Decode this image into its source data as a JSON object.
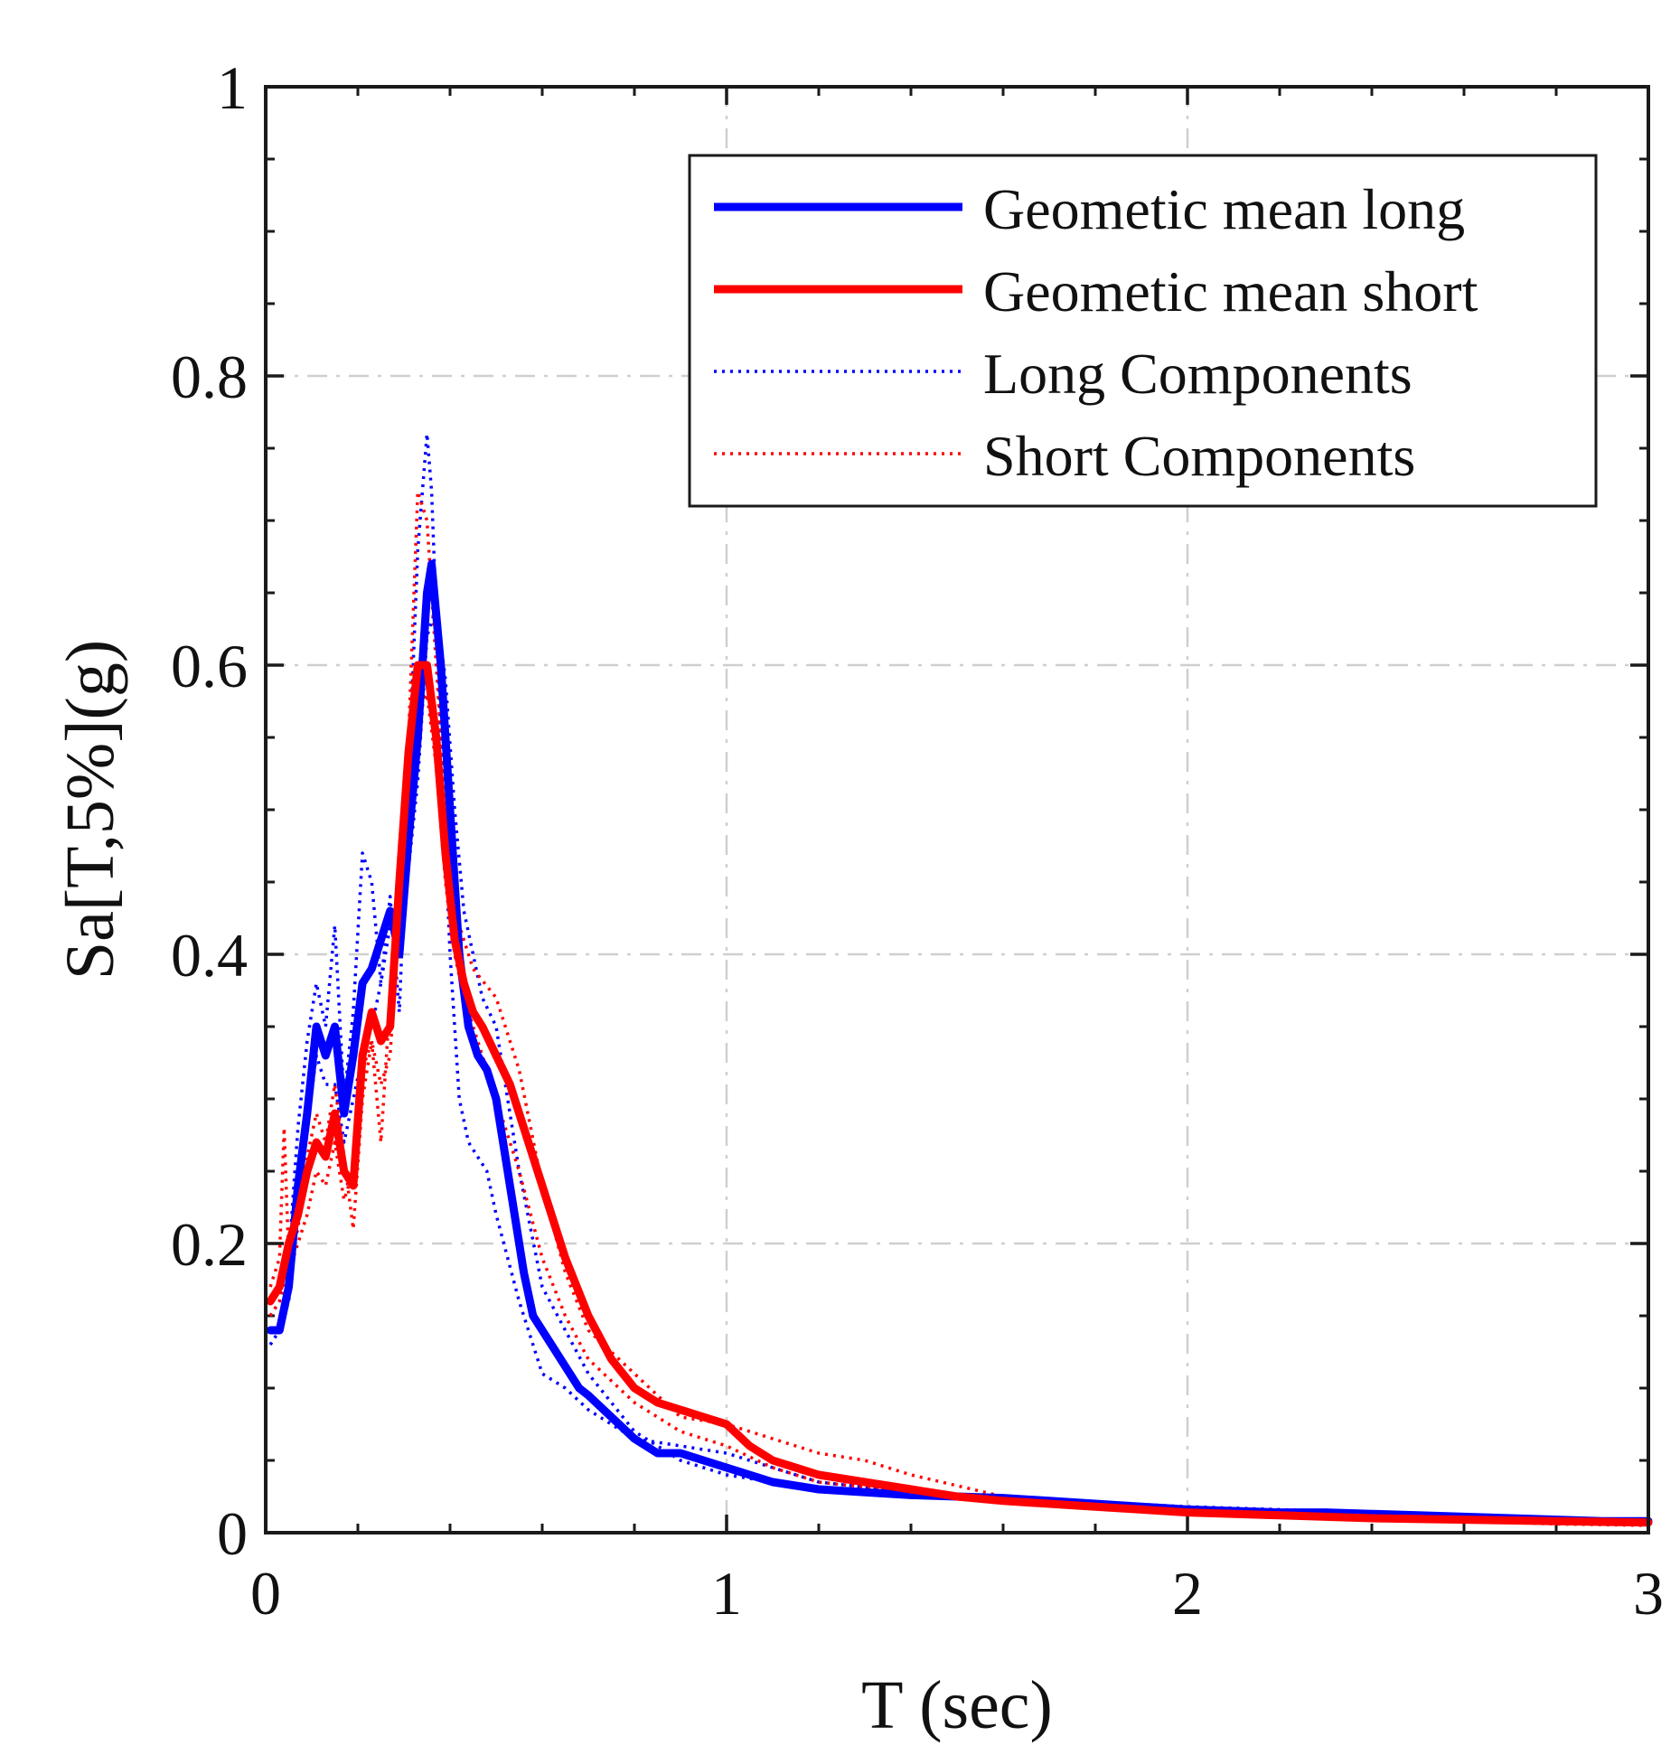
{
  "chart_data": {
    "type": "line",
    "title": "",
    "xlabel": "T (sec)",
    "ylabel": "Sa[T,5%](g)",
    "xlim": [
      0,
      3
    ],
    "ylim": [
      0,
      1
    ],
    "xticks": [
      0,
      1,
      2,
      3
    ],
    "xtick_labels": [
      "0",
      "1",
      "2",
      "3"
    ],
    "yticks": [
      0,
      0.2,
      0.4,
      0.6,
      0.8,
      1
    ],
    "ytick_labels": [
      "0",
      "0.2",
      "0.4",
      "0.6",
      "0.8",
      "1"
    ],
    "x_minor_step": 0.2,
    "y_minor_step": 0.05,
    "grid": true,
    "legend_position": "top-right",
    "series": [
      {
        "name": "Geometic mean long",
        "color": "#0000ff",
        "style": "solid",
        "width": "thick",
        "x": [
          0.01,
          0.03,
          0.05,
          0.07,
          0.09,
          0.11,
          0.13,
          0.15,
          0.17,
          0.19,
          0.21,
          0.23,
          0.25,
          0.27,
          0.29,
          0.31,
          0.33,
          0.35,
          0.36,
          0.38,
          0.4,
          0.42,
          0.44,
          0.46,
          0.48,
          0.5,
          0.52,
          0.54,
          0.56,
          0.58,
          0.6,
          0.62,
          0.64,
          0.66,
          0.68,
          0.7,
          0.75,
          0.8,
          0.85,
          0.9,
          0.95,
          1.0,
          1.05,
          1.1,
          1.2,
          1.3,
          1.4,
          1.5,
          1.6,
          1.7,
          1.8,
          1.9,
          2.0,
          2.1,
          2.2,
          2.3,
          2.4,
          2.5,
          2.6,
          2.7,
          2.8,
          2.9,
          3.0
        ],
        "y": [
          0.14,
          0.14,
          0.17,
          0.24,
          0.29,
          0.35,
          0.33,
          0.35,
          0.29,
          0.33,
          0.38,
          0.39,
          0.41,
          0.43,
          0.4,
          0.48,
          0.55,
          0.65,
          0.67,
          0.6,
          0.5,
          0.4,
          0.35,
          0.33,
          0.32,
          0.3,
          0.26,
          0.22,
          0.18,
          0.15,
          0.14,
          0.13,
          0.12,
          0.11,
          0.1,
          0.095,
          0.08,
          0.065,
          0.055,
          0.055,
          0.05,
          0.045,
          0.04,
          0.035,
          0.03,
          0.028,
          0.026,
          0.025,
          0.024,
          0.022,
          0.02,
          0.018,
          0.016,
          0.015,
          0.014,
          0.014,
          0.013,
          0.012,
          0.011,
          0.01,
          0.009,
          0.008,
          0.008
        ]
      },
      {
        "name": "Geometic mean short",
        "color": "#ff0000",
        "style": "solid",
        "width": "thick",
        "x": [
          0.01,
          0.03,
          0.05,
          0.07,
          0.09,
          0.11,
          0.13,
          0.15,
          0.17,
          0.19,
          0.21,
          0.23,
          0.25,
          0.27,
          0.29,
          0.31,
          0.33,
          0.35,
          0.37,
          0.39,
          0.41,
          0.43,
          0.45,
          0.47,
          0.5,
          0.53,
          0.56,
          0.6,
          0.65,
          0.7,
          0.75,
          0.8,
          0.85,
          0.9,
          0.95,
          1.0,
          1.05,
          1.1,
          1.2,
          1.3,
          1.4,
          1.5,
          1.6,
          1.7,
          1.8,
          1.9,
          2.0,
          2.2,
          2.4,
          2.6,
          2.8,
          3.0
        ],
        "y": [
          0.16,
          0.17,
          0.2,
          0.22,
          0.25,
          0.27,
          0.26,
          0.29,
          0.25,
          0.24,
          0.33,
          0.36,
          0.34,
          0.35,
          0.45,
          0.54,
          0.6,
          0.6,
          0.55,
          0.47,
          0.41,
          0.38,
          0.36,
          0.35,
          0.33,
          0.31,
          0.28,
          0.24,
          0.19,
          0.15,
          0.12,
          0.1,
          0.09,
          0.085,
          0.08,
          0.075,
          0.06,
          0.05,
          0.04,
          0.035,
          0.03,
          0.025,
          0.022,
          0.02,
          0.018,
          0.016,
          0.014,
          0.012,
          0.01,
          0.009,
          0.008,
          0.007
        ]
      },
      {
        "name": "Long Components",
        "color": "#0000ff",
        "style": "dotted",
        "width": "thin",
        "x": [
          0.01,
          0.03,
          0.05,
          0.07,
          0.09,
          0.11,
          0.13,
          0.15,
          0.17,
          0.19,
          0.21,
          0.23,
          0.25,
          0.27,
          0.29,
          0.31,
          0.33,
          0.35,
          0.36,
          0.38,
          0.4,
          0.42,
          0.44,
          0.46,
          0.48,
          0.5,
          0.55,
          0.6,
          0.65,
          0.7,
          0.8,
          0.9,
          1.0,
          1.1,
          1.2,
          1.4,
          1.6,
          1.8,
          2.0,
          2.2,
          2.4,
          2.6,
          2.8,
          3.0
        ],
        "y": [
          0.15,
          0.16,
          0.19,
          0.28,
          0.34,
          0.38,
          0.35,
          0.42,
          0.3,
          0.36,
          0.47,
          0.45,
          0.38,
          0.44,
          0.36,
          0.52,
          0.68,
          0.76,
          0.72,
          0.55,
          0.4,
          0.3,
          0.27,
          0.26,
          0.25,
          0.22,
          0.16,
          0.11,
          0.1,
          0.085,
          0.065,
          0.06,
          0.055,
          0.045,
          0.035,
          0.028,
          0.024,
          0.02,
          0.017,
          0.015,
          0.013,
          0.011,
          0.009,
          0.008
        ]
      },
      {
        "name": "Long Components",
        "color": "#0000ff",
        "style": "dotted",
        "width": "thin",
        "x": [
          0.01,
          0.03,
          0.05,
          0.07,
          0.09,
          0.11,
          0.13,
          0.15,
          0.17,
          0.19,
          0.21,
          0.23,
          0.25,
          0.27,
          0.29,
          0.31,
          0.33,
          0.35,
          0.37,
          0.39,
          0.41,
          0.43,
          0.45,
          0.47,
          0.5,
          0.55,
          0.6,
          0.65,
          0.7,
          0.8,
          0.9,
          1.0,
          1.1,
          1.2,
          1.4,
          1.6,
          1.8,
          2.0,
          2.2,
          2.4,
          2.6,
          2.8,
          3.0
        ],
        "y": [
          0.13,
          0.14,
          0.16,
          0.22,
          0.28,
          0.33,
          0.31,
          0.31,
          0.27,
          0.3,
          0.33,
          0.35,
          0.38,
          0.42,
          0.43,
          0.46,
          0.52,
          0.62,
          0.64,
          0.59,
          0.5,
          0.43,
          0.4,
          0.37,
          0.35,
          0.25,
          0.17,
          0.14,
          0.11,
          0.07,
          0.05,
          0.04,
          0.035,
          0.03,
          0.026,
          0.024,
          0.021,
          0.018,
          0.016,
          0.014,
          0.012,
          0.01,
          0.009
        ]
      },
      {
        "name": "Short Components",
        "color": "#ff0000",
        "style": "dotted",
        "width": "thin",
        "x": [
          0.01,
          0.03,
          0.04,
          0.05,
          0.07,
          0.09,
          0.11,
          0.13,
          0.15,
          0.17,
          0.19,
          0.21,
          0.23,
          0.25,
          0.27,
          0.29,
          0.31,
          0.33,
          0.35,
          0.37,
          0.39,
          0.41,
          0.43,
          0.45,
          0.5,
          0.55,
          0.6,
          0.65,
          0.7,
          0.8,
          0.9,
          1.0,
          1.1,
          1.2,
          1.3,
          1.4,
          1.6,
          1.8,
          2.0,
          2.2,
          2.4,
          2.6,
          2.8,
          3.0
        ],
        "y": [
          0.17,
          0.19,
          0.28,
          0.19,
          0.21,
          0.26,
          0.29,
          0.27,
          0.31,
          0.26,
          0.21,
          0.3,
          0.34,
          0.27,
          0.37,
          0.42,
          0.55,
          0.72,
          0.7,
          0.6,
          0.5,
          0.43,
          0.41,
          0.39,
          0.37,
          0.32,
          0.24,
          0.18,
          0.14,
          0.11,
          0.08,
          0.075,
          0.065,
          0.055,
          0.05,
          0.04,
          0.025,
          0.02,
          0.016,
          0.013,
          0.011,
          0.009,
          0.007,
          0.006
        ]
      },
      {
        "name": "Short Components",
        "color": "#ff0000",
        "style": "dotted",
        "width": "thin",
        "x": [
          0.01,
          0.03,
          0.05,
          0.07,
          0.09,
          0.11,
          0.13,
          0.15,
          0.17,
          0.19,
          0.21,
          0.23,
          0.25,
          0.27,
          0.29,
          0.31,
          0.33,
          0.35,
          0.37,
          0.39,
          0.41,
          0.43,
          0.45,
          0.5,
          0.55,
          0.6,
          0.65,
          0.7,
          0.8,
          0.9,
          1.0,
          1.1,
          1.2,
          1.4,
          1.6,
          1.8,
          2.0,
          2.2,
          2.4,
          2.6,
          2.8,
          3.0
        ],
        "y": [
          0.15,
          0.16,
          0.18,
          0.2,
          0.22,
          0.25,
          0.24,
          0.27,
          0.23,
          0.25,
          0.32,
          0.34,
          0.31,
          0.33,
          0.43,
          0.52,
          0.57,
          0.58,
          0.53,
          0.45,
          0.4,
          0.37,
          0.35,
          0.3,
          0.25,
          0.19,
          0.15,
          0.12,
          0.09,
          0.07,
          0.06,
          0.045,
          0.035,
          0.028,
          0.022,
          0.018,
          0.015,
          0.012,
          0.01,
          0.008,
          0.006,
          0.005
        ]
      }
    ],
    "legend": [
      {
        "label": "Geometic mean long",
        "color": "#0000ff",
        "style": "solid"
      },
      {
        "label": "Geometic mean short",
        "color": "#ff0000",
        "style": "solid"
      },
      {
        "label": "Long Components",
        "color": "#0000ff",
        "style": "dotted"
      },
      {
        "label": "Short Components",
        "color": "#ff0000",
        "style": "dotted"
      }
    ]
  }
}
